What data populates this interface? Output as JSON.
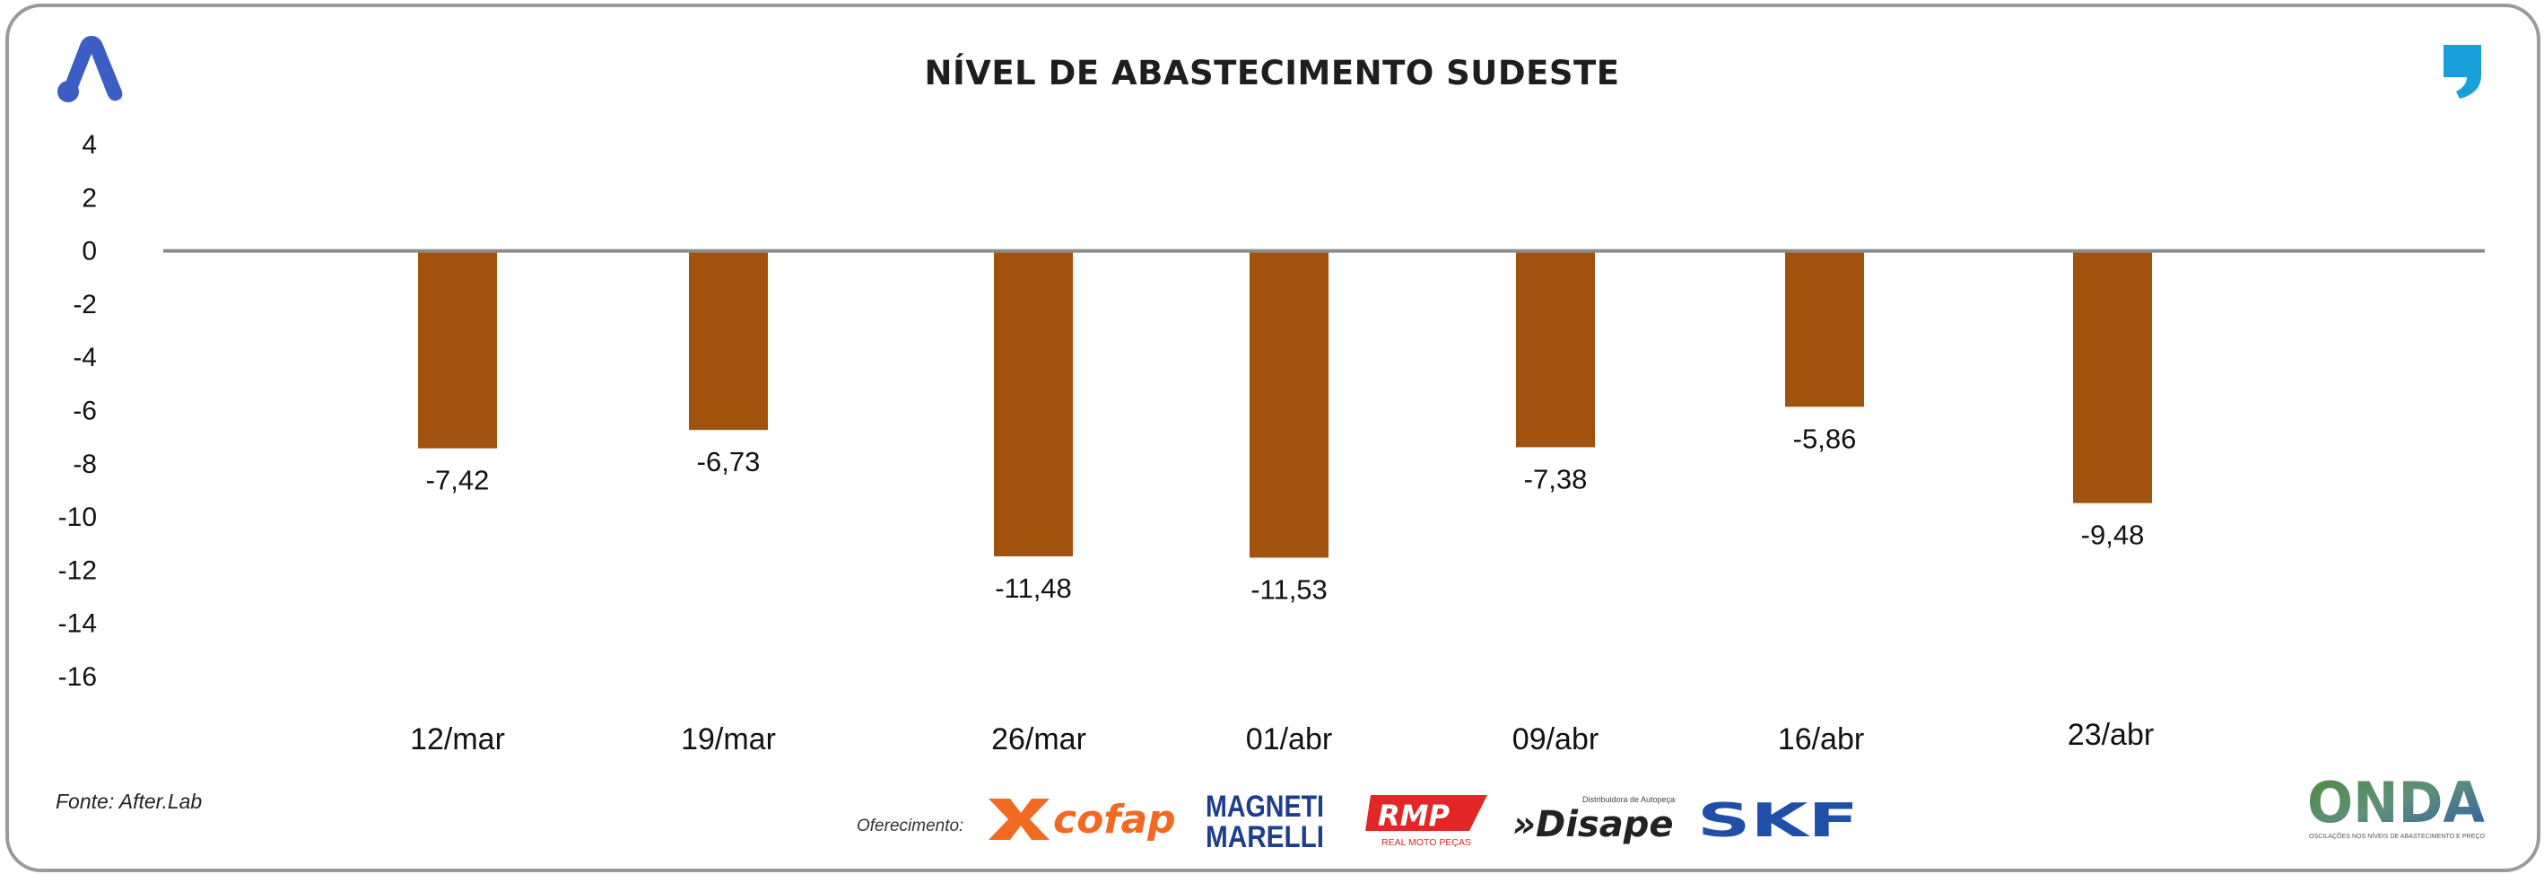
{
  "chart_data": {
    "type": "bar",
    "title": "NÍVEL DE ABASTECIMENTO SUDESTE",
    "categories": [
      "12/mar",
      "19/mar",
      "26/mar",
      "01/abr",
      "09/abr",
      "16/abr",
      "23/abr"
    ],
    "values": [
      -7.42,
      -6.73,
      -11.48,
      -11.53,
      -7.38,
      -5.86,
      -9.48
    ],
    "value_labels": [
      "-7,42",
      "-6,73",
      "-11,48",
      "-11,53",
      "-7,38",
      "-5,86",
      "-9,48"
    ],
    "y_ticks": [
      "4",
      "2",
      "0",
      "-2",
      "-4",
      "-6",
      "-8",
      "-10",
      "-12",
      "-14",
      "-16"
    ],
    "ylim": [
      -16,
      4
    ],
    "xlabel": "",
    "ylabel": "",
    "grid": false,
    "bar_color": "#a0520e",
    "zero_line_color": "#8c8c8c"
  },
  "footer": {
    "source": "Fonte: After.Lab",
    "sponsors_label": "Oferecimento:",
    "sponsors": [
      "cofap",
      "MAGNETI MARELLI",
      "RMP",
      "Disape",
      "SKF"
    ],
    "sponsor_taglines": {
      "rmp": "REAL MOTO PEÇAS",
      "disape": "Distribuidora de Autopeças"
    },
    "onda_logo": "ONDA",
    "onda_tagline": "OSCILAÇÕES NOS NÍVEIS DE ABASTECIMENTO E PREÇO"
  },
  "branding": {
    "left_icon": "a-logo-icon",
    "right_icon": "quote-mark-icon",
    "blue": "#3a5ec4",
    "cyan": "#1aa0d8"
  }
}
